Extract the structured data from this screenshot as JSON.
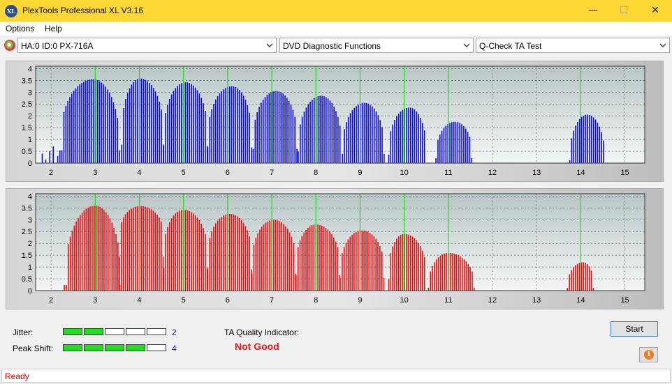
{
  "window": {
    "title": "PlexTools Professional XL V3.16",
    "icon_text": "XL",
    "minimize_glyph": "—",
    "maximize_glyph": "☐",
    "close_glyph": "✕"
  },
  "menu": {
    "items": [
      {
        "label": "Options"
      },
      {
        "label": "Help"
      }
    ]
  },
  "toolbar": {
    "drive": "HA:0 ID:0  PX-716A",
    "function": "DVD Diagnostic Functions",
    "test": "Q-Check TA Test"
  },
  "colors": {
    "jitter_bars": "#0a0adc",
    "peakshift_bars": "#e01010",
    "grid_green": "#22dd22",
    "meter_on": "#22dd22",
    "status_red": "#cc0000",
    "indicator_red": "#ee1111"
  },
  "chart_data": [
    {
      "type": "bar",
      "series_name": "jitter",
      "x_ticks": [
        2,
        3,
        4,
        5,
        6,
        7,
        8,
        9,
        10,
        11,
        12,
        13,
        14,
        15
      ],
      "y_ticks": [
        "0",
        "0.5",
        "1",
        "1.5",
        "2",
        "2.5",
        "3",
        "3.5",
        "4"
      ],
      "xlim": [
        1.65,
        15.45
      ],
      "ylim": [
        0,
        4.1
      ],
      "lobes": [
        {
          "x": [
            1.8,
            1.88,
            1.97,
            2.05,
            2.15
          ],
          "y": [
            0.4,
            0.15,
            0.5,
            0.7,
            0.3
          ]
        },
        {
          "x_center": 2.95,
          "x_start": 2.2,
          "x_end": 3.55,
          "peak": 3.55,
          "base": 0.9
        },
        {
          "x_center": 4.02,
          "x_start": 3.6,
          "x_end": 4.55,
          "peak": 3.58,
          "base": 1.3
        },
        {
          "x_center": 5.05,
          "x_start": 4.55,
          "x_end": 5.55,
          "peak": 3.42,
          "base": 1.2
        },
        {
          "x_center": 6.1,
          "x_start": 5.55,
          "x_end": 6.55,
          "peak": 3.25,
          "base": 1.1
        },
        {
          "x_center": 7.1,
          "x_start": 6.58,
          "x_end": 7.58,
          "peak": 3.05,
          "base": 1.0
        },
        {
          "x_center": 8.12,
          "x_start": 7.6,
          "x_end": 8.58,
          "peak": 2.85,
          "base": 0.8
        },
        {
          "x_center": 9.1,
          "x_start": 8.6,
          "x_end": 9.55,
          "peak": 2.55,
          "base": 0.65
        },
        {
          "x_center": 10.12,
          "x_start": 9.65,
          "x_end": 10.5,
          "peak": 2.35,
          "base": 0.6
        },
        {
          "x_center": 11.15,
          "x_start": 10.72,
          "x_end": 11.55,
          "peak": 1.75,
          "base": 0.35
        },
        {
          "x_center": 14.15,
          "x_start": 13.75,
          "x_end": 14.55,
          "peak": 2.05,
          "base": 0.2
        }
      ]
    },
    {
      "type": "bar",
      "series_name": "peak_shift",
      "x_ticks": [
        2,
        3,
        4,
        5,
        6,
        7,
        8,
        9,
        10,
        11,
        12,
        13,
        14,
        15
      ],
      "y_ticks": [
        "0",
        "0.5",
        "1",
        "1.5",
        "2",
        "2.5",
        "3",
        "3.5",
        "4"
      ],
      "xlim": [
        1.65,
        15.45
      ],
      "ylim": [
        0,
        4.1
      ],
      "lobes": [
        {
          "x_center": 3.0,
          "x_start": 2.3,
          "x_end": 3.6,
          "peak": 3.6,
          "base": 0.4
        },
        {
          "x_center": 4.02,
          "x_start": 3.55,
          "x_end": 4.55,
          "peak": 3.58,
          "base": 2.4
        },
        {
          "x_center": 5.0,
          "x_start": 4.55,
          "x_end": 5.55,
          "peak": 3.42,
          "base": 1.6
        },
        {
          "x_center": 6.05,
          "x_start": 5.55,
          "x_end": 6.55,
          "peak": 3.25,
          "base": 1.5
        },
        {
          "x_center": 7.05,
          "x_start": 6.55,
          "x_end": 7.55,
          "peak": 3.0,
          "base": 1.2
        },
        {
          "x_center": 8.0,
          "x_start": 7.55,
          "x_end": 8.55,
          "peak": 2.8,
          "base": 1.1
        },
        {
          "x_center": 9.05,
          "x_start": 8.55,
          "x_end": 9.55,
          "peak": 2.55,
          "base": 0.9
        },
        {
          "x_center": 10.0,
          "x_start": 9.65,
          "x_end": 10.5,
          "peak": 2.4,
          "base": 0.8
        },
        {
          "x_center": 11.0,
          "x_start": 10.55,
          "x_end": 11.6,
          "peak": 1.6,
          "base": 0.2
        },
        {
          "x_center": 14.05,
          "x_start": 13.7,
          "x_end": 14.3,
          "peak": 1.2,
          "base": 0.2
        }
      ]
    }
  ],
  "results": {
    "jitter_label": "Jitter:",
    "jitter_value": "2",
    "jitter_level": 2,
    "peakshift_label": "Peak Shift:",
    "peakshift_value": "4",
    "peakshift_level": 4,
    "meter_cells": 5,
    "ta_label": "TA Quality Indicator:",
    "ta_value": "Not Good"
  },
  "buttons": {
    "start": "Start",
    "info_glyph": "i"
  },
  "status": {
    "text": "Ready"
  }
}
